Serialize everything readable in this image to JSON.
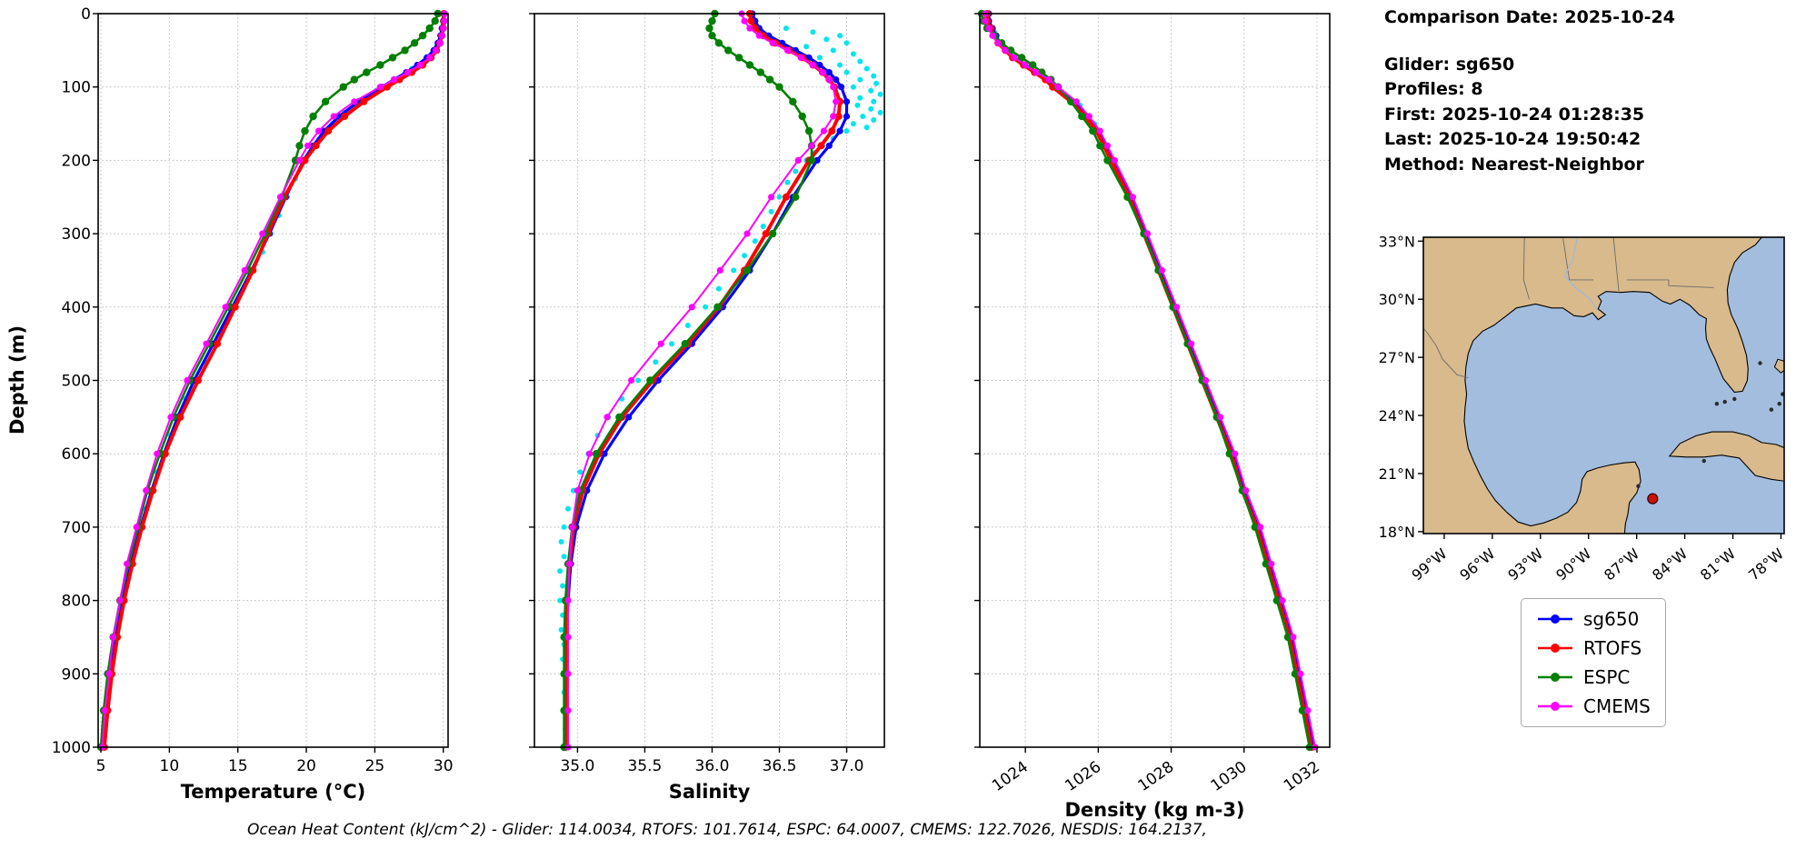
{
  "info_panel": {
    "comparison_date": "Comparison Date: 2025-10-24",
    "glider": "Glider: sg650",
    "profiles": "Profiles: 8",
    "first": "First: 2025-10-24 01:28:35",
    "last": "Last: 2025-10-24 19:50:42",
    "method": "Method: Nearest-Neighbor"
  },
  "caption": "Ocean Heat Content (kJ/cm^2) - Glider: 114.0034,  RTOFS: 101.7614,  ESPC: 64.0007,  CMEMS: 122.7026,  NESDIS: 164.2137,",
  "legend": {
    "entries": [
      {
        "label": "sg650",
        "color": "#0000ff"
      },
      {
        "label": "RTOFS",
        "color": "#ff0000"
      },
      {
        "label": "ESPC",
        "color": "#008000"
      },
      {
        "label": "CMEMS",
        "color": "#ff00ff"
      }
    ]
  },
  "map": {
    "land_color": "#d9ba8c",
    "ocean_color": "#a3bdde",
    "coastline_color": "#000000",
    "marker": {
      "lon": -86.0,
      "lat": 19.7,
      "color": "#cc1100"
    },
    "lat_ticks": [
      {
        "v": 33,
        "label": "33°N"
      },
      {
        "v": 30,
        "label": "30°N"
      },
      {
        "v": 27,
        "label": "27°N"
      },
      {
        "v": 24,
        "label": "24°N"
      },
      {
        "v": 21,
        "label": "21°N"
      },
      {
        "v": 18,
        "label": "18°N"
      }
    ],
    "lon_ticks": [
      {
        "v": -99,
        "label": "99°W"
      },
      {
        "v": -96,
        "label": "96°W"
      },
      {
        "v": -93,
        "label": "93°W"
      },
      {
        "v": -90,
        "label": "90°W"
      },
      {
        "v": -87,
        "label": "87°W"
      },
      {
        "v": -84,
        "label": "84°W"
      },
      {
        "v": -81,
        "label": "81°W"
      },
      {
        "v": -78,
        "label": "78°W"
      }
    ]
  },
  "chart_data": {
    "type": "line",
    "ylabel": "Depth (m)",
    "ylim": [
      0,
      1000
    ],
    "yticks": [
      0,
      100,
      200,
      300,
      400,
      500,
      600,
      700,
      800,
      900,
      1000
    ],
    "depths": [
      0,
      10,
      20,
      30,
      40,
      50,
      60,
      70,
      80,
      90,
      100,
      120,
      140,
      160,
      180,
      200,
      250,
      300,
      350,
      400,
      450,
      500,
      550,
      600,
      650,
      700,
      750,
      800,
      850,
      900,
      950,
      1000
    ],
    "plots": [
      {
        "key": "temperature",
        "xlabel": "Temperature (°C)",
        "xlim": [
          4.8,
          30.35
        ],
        "xticks": [
          5,
          10,
          15,
          20,
          25,
          30
        ],
        "xtick_labels": [
          "5",
          "10",
          "15",
          "20",
          "25",
          "30"
        ],
        "rotate_xticks": false
      },
      {
        "key": "salinity",
        "xlabel": "Salinity",
        "xlim": [
          34.68,
          37.28
        ],
        "xticks": [
          35.0,
          35.5,
          36.0,
          36.5,
          37.0
        ],
        "xtick_labels": [
          "35.0",
          "35.5",
          "36.0",
          "36.5",
          "37.0"
        ],
        "rotate_xticks": false
      },
      {
        "key": "density",
        "xlabel": "Density (kg m-3)",
        "xlim": [
          1022.75,
          1032.35
        ],
        "xticks": [
          1024,
          1026,
          1028,
          1030,
          1032
        ],
        "xtick_labels": [
          "1024",
          "1026",
          "1028",
          "1030",
          "1032"
        ],
        "rotate_xticks": true
      }
    ],
    "series": [
      {
        "name": "sg650",
        "color": "#0000ff",
        "width": 3.2,
        "marker": 3.6,
        "temperature": [
          30.0,
          30.0,
          29.9,
          29.8,
          29.6,
          29.3,
          28.8,
          28.1,
          27.3,
          26.4,
          25.5,
          23.8,
          22.4,
          21.3,
          20.5,
          19.8,
          18.5,
          17.3,
          16.0,
          14.6,
          13.2,
          11.8,
          10.6,
          9.6,
          8.7,
          7.9,
          7.2,
          6.6,
          6.1,
          5.7,
          5.4,
          5.2
        ],
        "salinity": [
          36.3,
          36.32,
          36.35,
          36.42,
          36.52,
          36.62,
          36.72,
          36.8,
          36.87,
          36.92,
          36.96,
          37.0,
          37.0,
          36.95,
          36.87,
          36.78,
          36.6,
          36.45,
          36.28,
          36.08,
          35.85,
          35.6,
          35.38,
          35.2,
          35.07,
          34.99,
          34.95,
          34.93,
          34.92,
          34.92,
          34.92,
          34.92
        ],
        "density": [
          1023.0,
          1023.0,
          1023.1,
          1023.2,
          1023.3,
          1023.5,
          1023.7,
          1024.0,
          1024.3,
          1024.6,
          1024.8,
          1025.3,
          1025.7,
          1026.0,
          1026.2,
          1026.4,
          1026.9,
          1027.3,
          1027.7,
          1028.1,
          1028.5,
          1028.9,
          1029.3,
          1029.7,
          1030.0,
          1030.4,
          1030.7,
          1031.0,
          1031.3,
          1031.5,
          1031.7,
          1031.9
        ]
      },
      {
        "name": "RTOFS",
        "color": "#ff0000",
        "width": 4,
        "marker": 4,
        "temperature": [
          30.05,
          30.05,
          30.0,
          29.9,
          29.75,
          29.5,
          29.1,
          28.5,
          27.7,
          26.8,
          25.9,
          24.2,
          22.8,
          21.6,
          20.7,
          19.9,
          18.4,
          17.2,
          16.1,
          14.8,
          13.5,
          12.1,
          10.8,
          9.7,
          8.8,
          8.0,
          7.3,
          6.7,
          6.2,
          5.8,
          5.5,
          5.25
        ],
        "salinity": [
          36.28,
          36.29,
          36.32,
          36.38,
          36.47,
          36.57,
          36.67,
          36.75,
          36.82,
          36.87,
          36.91,
          36.95,
          36.94,
          36.89,
          36.81,
          36.72,
          36.55,
          36.4,
          36.24,
          36.05,
          35.82,
          35.56,
          35.33,
          35.16,
          35.04,
          34.97,
          34.94,
          34.92,
          34.91,
          34.91,
          34.91,
          34.91
        ],
        "density": [
          1022.95,
          1022.95,
          1023.05,
          1023.15,
          1023.25,
          1023.45,
          1023.65,
          1023.95,
          1024.25,
          1024.55,
          1024.75,
          1025.25,
          1025.65,
          1025.95,
          1026.15,
          1026.35,
          1026.85,
          1027.25,
          1027.65,
          1028.05,
          1028.45,
          1028.85,
          1029.25,
          1029.65,
          1029.95,
          1030.35,
          1030.65,
          1030.95,
          1031.25,
          1031.45,
          1031.65,
          1031.85
        ]
      },
      {
        "name": "ESPC",
        "color": "#008000",
        "width": 2.6,
        "marker": 4.2,
        "temperature": [
          29.6,
          29.4,
          29.0,
          28.5,
          27.9,
          27.2,
          26.3,
          25.4,
          24.4,
          23.5,
          22.7,
          21.4,
          20.5,
          19.9,
          19.5,
          19.2,
          18.2,
          17.0,
          15.7,
          14.3,
          12.9,
          11.5,
          10.3,
          9.3,
          8.4,
          7.7,
          7.0,
          6.4,
          5.9,
          5.5,
          5.2,
          5.0
        ],
        "salinity": [
          36.02,
          36.0,
          35.98,
          36.0,
          36.05,
          36.12,
          36.2,
          36.28,
          36.36,
          36.43,
          36.5,
          36.6,
          36.67,
          36.72,
          36.74,
          36.74,
          36.62,
          36.45,
          36.26,
          36.04,
          35.8,
          35.54,
          35.31,
          35.14,
          35.02,
          34.96,
          34.93,
          34.91,
          34.9,
          34.9,
          34.9,
          34.9
        ],
        "density": [
          1022.8,
          1022.85,
          1022.95,
          1023.15,
          1023.35,
          1023.6,
          1023.9,
          1024.2,
          1024.45,
          1024.7,
          1024.9,
          1025.25,
          1025.55,
          1025.85,
          1026.05,
          1026.25,
          1026.8,
          1027.25,
          1027.65,
          1028.05,
          1028.45,
          1028.85,
          1029.25,
          1029.6,
          1029.95,
          1030.3,
          1030.6,
          1030.9,
          1031.2,
          1031.4,
          1031.6,
          1031.8
        ]
      },
      {
        "name": "CMEMS",
        "color": "#ff00ff",
        "width": 2,
        "marker": 3.6,
        "temperature": [
          30.1,
          30.1,
          30.0,
          29.9,
          29.75,
          29.45,
          29.0,
          28.3,
          27.4,
          26.4,
          25.4,
          23.5,
          22.0,
          20.9,
          20.1,
          19.5,
          18.1,
          16.8,
          15.5,
          14.1,
          12.7,
          11.3,
          10.1,
          9.1,
          8.3,
          7.6,
          6.9,
          6.4,
          5.9,
          5.6,
          5.3,
          5.1
        ],
        "salinity": [
          36.22,
          36.24,
          36.28,
          36.35,
          36.45,
          36.56,
          36.66,
          36.75,
          36.82,
          36.87,
          36.9,
          36.92,
          36.9,
          36.83,
          36.74,
          36.64,
          36.44,
          36.26,
          36.06,
          35.85,
          35.62,
          35.4,
          35.22,
          35.09,
          35.0,
          34.96,
          34.94,
          34.93,
          34.93,
          34.93,
          34.93,
          34.93
        ],
        "density": [
          1022.9,
          1022.9,
          1023.0,
          1023.1,
          1023.25,
          1023.45,
          1023.7,
          1024.0,
          1024.3,
          1024.65,
          1024.9,
          1025.4,
          1025.75,
          1026.05,
          1026.25,
          1026.45,
          1026.95,
          1027.35,
          1027.75,
          1028.15,
          1028.55,
          1028.95,
          1029.35,
          1029.75,
          1030.05,
          1030.45,
          1030.75,
          1031.05,
          1031.35,
          1031.55,
          1031.75,
          1031.95
        ]
      }
    ],
    "scatter": {
      "color": "#00e5ee",
      "size": 3,
      "temperature": [
        [
          0,
          30.0
        ],
        [
          15,
          30.0
        ],
        [
          30,
          29.9
        ],
        [
          45,
          29.5
        ],
        [
          60,
          28.9
        ],
        [
          75,
          27.7
        ],
        [
          90,
          26.4
        ],
        [
          105,
          25.1
        ],
        [
          120,
          23.9
        ],
        [
          135,
          22.8
        ],
        [
          150,
          21.9
        ],
        [
          165,
          21.2
        ],
        [
          180,
          20.5
        ],
        [
          200,
          19.9
        ],
        [
          225,
          19.2
        ],
        [
          250,
          18.6
        ],
        [
          275,
          18.0
        ],
        [
          300,
          17.4
        ],
        [
          325,
          16.8
        ],
        [
          350,
          16.1
        ],
        [
          375,
          15.4
        ],
        [
          400,
          14.7
        ],
        [
          425,
          14.0
        ],
        [
          450,
          13.3
        ],
        [
          475,
          12.6
        ],
        [
          500,
          11.9
        ],
        [
          525,
          11.2
        ],
        [
          550,
          10.6
        ],
        [
          575,
          10.1
        ],
        [
          600,
          9.6
        ],
        [
          625,
          9.1
        ],
        [
          650,
          8.7
        ],
        [
          675,
          8.3
        ],
        [
          700,
          7.9
        ],
        [
          725,
          7.5
        ],
        [
          750,
          7.2
        ],
        [
          775,
          6.9
        ],
        [
          800,
          6.6
        ],
        [
          825,
          6.3
        ],
        [
          850,
          6.1
        ],
        [
          875,
          5.9
        ],
        [
          900,
          5.7
        ],
        [
          925,
          5.55
        ],
        [
          950,
          5.4
        ],
        [
          975,
          5.3
        ],
        [
          1000,
          5.2
        ]
      ],
      "salinity": [
        [
          20,
          36.55
        ],
        [
          25,
          36.75
        ],
        [
          30,
          36.95
        ],
        [
          35,
          36.85
        ],
        [
          40,
          37.0
        ],
        [
          45,
          36.7
        ],
        [
          50,
          36.9
        ],
        [
          55,
          37.05
        ],
        [
          60,
          36.8
        ],
        [
          65,
          37.1
        ],
        [
          70,
          36.95
        ],
        [
          75,
          37.15
        ],
        [
          80,
          37.0
        ],
        [
          85,
          37.2
        ],
        [
          90,
          37.1
        ],
        [
          95,
          37.22
        ],
        [
          100,
          37.05
        ],
        [
          105,
          37.18
        ],
        [
          110,
          37.25
        ],
        [
          115,
          37.1
        ],
        [
          120,
          37.2
        ],
        [
          125,
          37.08
        ],
        [
          130,
          37.18
        ],
        [
          135,
          37.25
        ],
        [
          140,
          37.12
        ],
        [
          145,
          37.2
        ],
        [
          150,
          37.05
        ],
        [
          155,
          37.15
        ],
        [
          160,
          37.0
        ],
        [
          170,
          36.9
        ],
        [
          180,
          36.82
        ],
        [
          190,
          36.76
        ],
        [
          200,
          36.7
        ],
        [
          215,
          36.62
        ],
        [
          230,
          36.56
        ],
        [
          250,
          36.5
        ],
        [
          270,
          36.44
        ],
        [
          290,
          36.38
        ],
        [
          310,
          36.32
        ],
        [
          330,
          36.24
        ],
        [
          350,
          36.16
        ],
        [
          375,
          36.05
        ],
        [
          400,
          35.95
        ],
        [
          425,
          35.82
        ],
        [
          450,
          35.7
        ],
        [
          475,
          35.58
        ],
        [
          500,
          35.45
        ],
        [
          525,
          35.33
        ],
        [
          550,
          35.23
        ],
        [
          575,
          35.15
        ],
        [
          600,
          35.08
        ],
        [
          625,
          35.02
        ],
        [
          650,
          34.97
        ],
        [
          675,
          34.93
        ],
        [
          700,
          34.9
        ],
        [
          720,
          34.88
        ],
        [
          740,
          34.9
        ],
        [
          760,
          34.87
        ],
        [
          780,
          34.89
        ],
        [
          800,
          34.87
        ],
        [
          820,
          34.89
        ],
        [
          840,
          34.88
        ],
        [
          860,
          34.9
        ],
        [
          880,
          34.89
        ],
        [
          900,
          34.9
        ],
        [
          925,
          34.9
        ],
        [
          950,
          34.91
        ],
        [
          975,
          34.91
        ],
        [
          1000,
          34.92
        ]
      ],
      "density": [
        [
          0,
          1022.95
        ],
        [
          25,
          1023.15
        ],
        [
          50,
          1023.5
        ],
        [
          75,
          1024.15
        ],
        [
          100,
          1024.8
        ],
        [
          125,
          1025.5
        ],
        [
          150,
          1025.9
        ],
        [
          175,
          1026.15
        ],
        [
          200,
          1026.4
        ],
        [
          250,
          1026.9
        ],
        [
          300,
          1027.3
        ],
        [
          350,
          1027.7
        ],
        [
          400,
          1028.1
        ],
        [
          450,
          1028.5
        ],
        [
          500,
          1028.9
        ],
        [
          550,
          1029.3
        ],
        [
          600,
          1029.7
        ],
        [
          650,
          1030.0
        ],
        [
          700,
          1030.4
        ],
        [
          750,
          1030.7
        ],
        [
          800,
          1031.0
        ],
        [
          850,
          1031.3
        ],
        [
          900,
          1031.5
        ],
        [
          950,
          1031.7
        ],
        [
          1000,
          1031.9
        ]
      ]
    }
  }
}
